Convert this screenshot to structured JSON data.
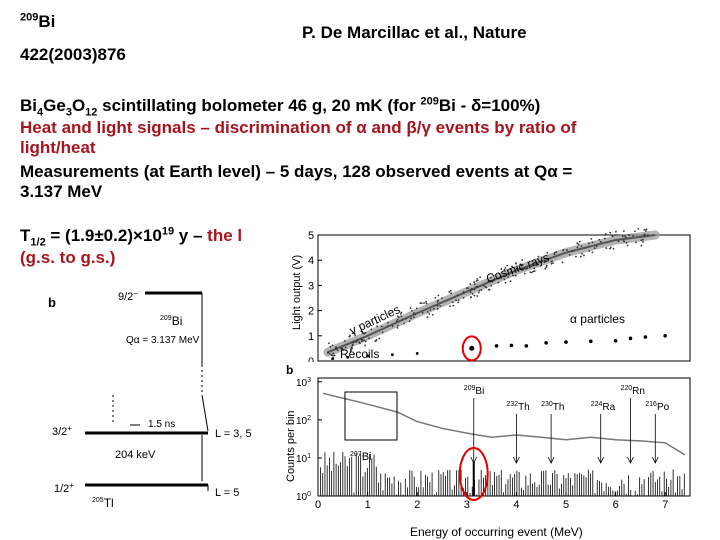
{
  "header": {
    "nuclide_mass": "209",
    "nuclide_symbol": "Bi",
    "journal_ref": "422(2003)876",
    "citation": "P. De Marcillac et al., Nature"
  },
  "description": {
    "detector_a": "Bi",
    "detector_b": "Ge",
    "detector_c": "O",
    "detector_sub_a": "4",
    "detector_sub_b": "3",
    "detector_sub_c": "12",
    "detector_rest": " scintillating bolometer 46 g, 20 mK (for ",
    "detector_iso": "209",
    "detector_tail": "Bi - δ=100%)",
    "heat_light": "Heat and light signals – discrimination of α and β/γ events by ratio of",
    "heat_light_2": "light/heat",
    "measurements": "Measurements (at Earth level) – 5 days, 128 observed events at Qα =",
    "measurements_2": "3.137 MeV"
  },
  "result": {
    "t_label": "T",
    "t_sub": "1/2",
    "value": " = (1.9±0.2)×10",
    "value_exp": "19",
    "value_tail": " y – ",
    "red_start": "the l",
    "red_end": "s",
    "red_line2": "(g.s. to g.s.)"
  },
  "level_scheme": {
    "panel_letter": "b",
    "parent_spin": "9/2",
    "parent_spin_sup": "−",
    "parent_mass": "209",
    "parent_symbol": "Bi",
    "q_alpha": "Qα = 3.137 MeV",
    "level1_spin": "3/2",
    "level1_sup": "+",
    "level1_time": "1.5 ns",
    "level1_L": "L = 3, 5",
    "gap_energy": "204 keV",
    "ground_spin": "1/2",
    "ground_sup": "+",
    "ground_L": "L = 5",
    "daughter_mass": "205",
    "daughter_symbol": "Tl"
  },
  "chart_data": [
    {
      "type": "scatter",
      "panel": "a",
      "ylabel": "Light output (V)",
      "ylim": [
        0,
        5
      ],
      "xlim": [
        0,
        7.5
      ],
      "y_ticks": [
        "0",
        "1",
        "2",
        "3",
        "4",
        "5"
      ],
      "annotations": [
        "Cosmic rays",
        "γ particles",
        "α particles",
        "Recoils"
      ],
      "series": [
        {
          "points": [
            [
              0.2,
              0.35
            ],
            [
              1.0,
              1.0
            ],
            [
              2.0,
              1.9
            ],
            [
              3.0,
              2.75
            ],
            [
              4.0,
              3.6
            ],
            [
              5.0,
              4.3
            ],
            [
              6.0,
              4.8
            ],
            [
              6.8,
              5.0
            ]
          ]
        },
        {
          "points": [
            [
              3.6,
              0.6
            ],
            [
              3.9,
              0.62
            ],
            [
              4.2,
              0.6
            ],
            [
              4.6,
              0.72
            ],
            [
              5.0,
              0.75
            ],
            [
              5.5,
              0.78
            ],
            [
              6.0,
              0.8
            ],
            [
              6.3,
              0.9
            ],
            [
              6.6,
              0.95
            ],
            [
              7.0,
              1.0
            ]
          ]
        },
        {
          "points": [
            [
              0.3,
              0.1
            ],
            [
              0.6,
              0.15
            ],
            [
              1.0,
              0.2
            ],
            [
              1.5,
              0.25
            ],
            [
              2.0,
              0.3
            ]
          ]
        },
        {
          "points": [
            [
              3.1,
              0.5
            ]
          ]
        }
      ]
    },
    {
      "type": "line",
      "panel": "b",
      "xlabel": "Energy of occurring event (MeV)",
      "ylabel": "Counts per bin",
      "xlim": [
        0,
        7.5
      ],
      "x_ticks": [
        "0",
        "1",
        "2",
        "3",
        "4",
        "5",
        "6",
        "7"
      ],
      "y_ticks": [
        {
          "base": "10",
          "exp": "0"
        },
        {
          "base": "10",
          "exp": "1"
        },
        {
          "base": "10",
          "exp": "2"
        },
        {
          "base": "10",
          "exp": "3"
        }
      ],
      "line_labels": [
        {
          "mass": "209",
          "symbol": "Bi",
          "x": 3.14
        },
        {
          "mass": "232",
          "symbol": "Th",
          "x": 4.0
        },
        {
          "mass": "230",
          "symbol": "Th",
          "x": 4.7
        },
        {
          "mass": "224",
          "symbol": "Ra",
          "x": 5.7
        },
        {
          "mass": "220",
          "symbol": "Rn",
          "x": 6.3
        },
        {
          "mass": "216",
          "symbol": "Po",
          "x": 6.8
        }
      ],
      "inset_label": {
        "mass": "207",
        "symbol": "Bi"
      },
      "series": [
        {
          "x": [
            0.1,
            0.4,
            0.8,
            1.2,
            1.6,
            2.0,
            2.5,
            3.0,
            3.5,
            4.0,
            4.5,
            5.0,
            5.5,
            6.0,
            6.5,
            7.0,
            7.4
          ],
          "y": [
            500,
            400,
            300,
            220,
            160,
            90,
            60,
            45,
            35,
            40,
            35,
            30,
            35,
            30,
            28,
            25,
            12
          ]
        }
      ]
    }
  ],
  "colors": {
    "text": "#000000",
    "red_text": "#a8141e",
    "highlight_circle": "#e00000"
  }
}
